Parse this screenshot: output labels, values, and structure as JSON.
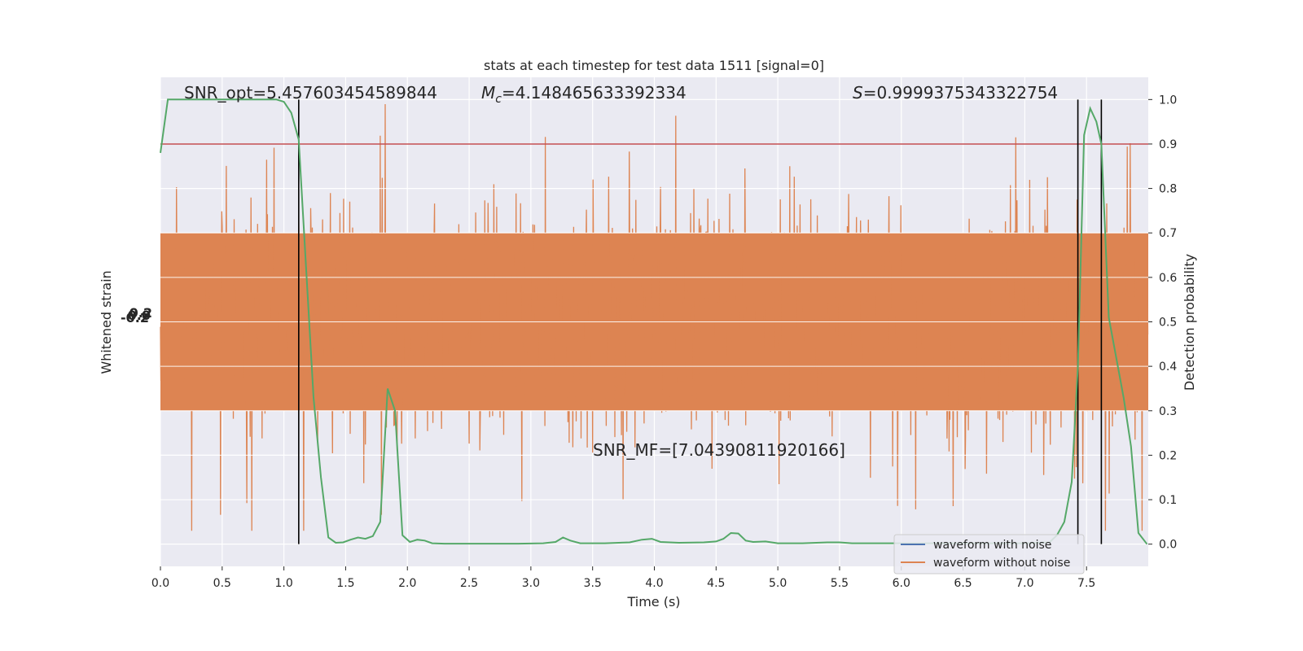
{
  "chart_data": {
    "type": "line",
    "title": "stats at each timestep for test data 1511 [signal=0]",
    "xlabel": "Time (s)",
    "ylabel_left": "Whitened strain",
    "ylabel_right": "Detection probability",
    "xlim": [
      0.0,
      8.0
    ],
    "ylim_right": [
      -0.05,
      1.05
    ],
    "x_ticks": [
      "0.0",
      "0.5",
      "1.0",
      "1.5",
      "2.0",
      "2.5",
      "3.0",
      "3.5",
      "4.0",
      "4.5",
      "5.0",
      "5.5",
      "6.0",
      "6.5",
      "7.0",
      "7.5"
    ],
    "y_ticks_right": [
      "0.0",
      "0.1",
      "0.2",
      "0.3",
      "0.4",
      "0.5",
      "0.6",
      "0.7",
      "0.8",
      "0.9",
      "1.0"
    ],
    "left_axis_tick_labels": [
      "-0.2",
      "0.0",
      "0.2"
    ],
    "grid": true,
    "legend_placement": "lower-right",
    "legend": [
      {
        "label": "waveform with noise",
        "color": "#4c72b0"
      },
      {
        "label": "waveform without noise",
        "color": "#dd8452"
      }
    ],
    "annotations": {
      "snr_opt": "SNR_opt=5.457603454589844",
      "mc_symbol": "M",
      "mc_sub": "c",
      "mc_value": "=4.148465633392334",
      "s_symbol": "S",
      "s_value": "=0.9999375343322754",
      "snr_mf": "SNR_MF=[7.04390811920166]"
    },
    "threshold": 0.9,
    "vertical_lines_x": [
      1.12,
      7.43,
      7.62
    ],
    "detection_probability": {
      "color": "#55a868",
      "x": [
        0.0,
        0.06,
        0.12,
        0.25,
        0.4,
        0.55,
        0.7,
        0.85,
        0.94,
        1.0,
        1.06,
        1.12,
        1.18,
        1.24,
        1.3,
        1.36,
        1.42,
        1.48,
        1.54,
        1.6,
        1.66,
        1.72,
        1.78,
        1.84,
        1.9,
        1.96,
        2.02,
        2.08,
        2.14,
        2.2,
        2.3,
        2.5,
        2.7,
        2.9,
        3.1,
        3.2,
        3.26,
        3.32,
        3.4,
        3.6,
        3.8,
        3.9,
        3.98,
        4.05,
        4.2,
        4.4,
        4.5,
        4.56,
        4.62,
        4.68,
        4.74,
        4.8,
        4.9,
        5.0,
        5.2,
        5.4,
        5.5,
        5.6,
        5.8,
        6.0,
        6.5,
        7.0,
        7.2,
        7.26,
        7.32,
        7.38,
        7.43,
        7.48,
        7.53,
        7.58,
        7.62,
        7.68,
        7.74,
        7.8,
        7.86,
        7.92,
        7.99
      ],
      "y": [
        0.88,
        1.0,
        1.0,
        1.0,
        1.0,
        1.0,
        1.0,
        1.0,
        1.0,
        0.995,
        0.97,
        0.91,
        0.62,
        0.33,
        0.15,
        0.015,
        0.003,
        0.004,
        0.01,
        0.015,
        0.012,
        0.018,
        0.05,
        0.35,
        0.3,
        0.02,
        0.005,
        0.01,
        0.008,
        0.002,
        0.001,
        0.001,
        0.001,
        0.001,
        0.002,
        0.005,
        0.015,
        0.008,
        0.002,
        0.002,
        0.004,
        0.01,
        0.012,
        0.005,
        0.003,
        0.004,
        0.006,
        0.012,
        0.025,
        0.024,
        0.008,
        0.005,
        0.006,
        0.002,
        0.002,
        0.004,
        0.004,
        0.002,
        0.002,
        0.002,
        0.002,
        0.002,
        0.004,
        0.02,
        0.05,
        0.14,
        0.4,
        0.92,
        0.98,
        0.95,
        0.9,
        0.51,
        0.42,
        0.33,
        0.22,
        0.025,
        0.0
      ]
    },
    "waveform_without_noise": {
      "color": "#dd8452",
      "typical_band_right_axis": [
        0.3,
        0.7
      ],
      "peak_max_right_axis": 1.0,
      "trough_min_right_axis": 0.03
    }
  }
}
